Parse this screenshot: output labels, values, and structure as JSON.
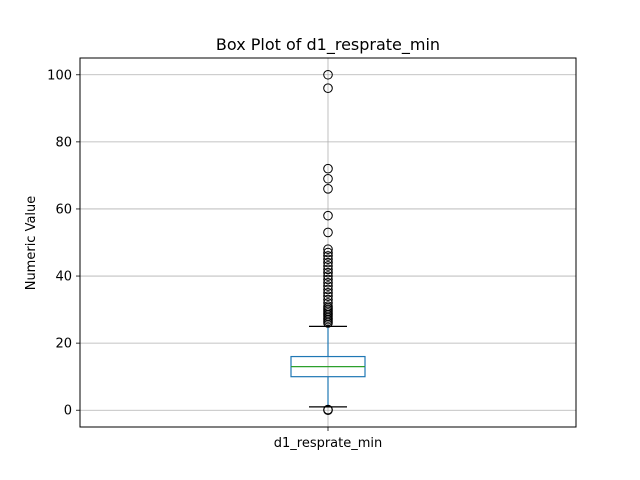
{
  "chart_data": {
    "type": "box",
    "title": "Box Plot of d1_resprate_min",
    "xlabel": "",
    "ylabel": "Numeric Value",
    "categories": [
      "d1_resprate_min"
    ],
    "ylim": [
      -5,
      105
    ],
    "yticks": [
      0,
      20,
      40,
      60,
      80,
      100
    ],
    "grid": true,
    "boxes": [
      {
        "name": "d1_resprate_min",
        "whisker_low": 1,
        "q1": 10,
        "median": 13,
        "q3": 16,
        "whisker_high": 25,
        "outliers_high": [
          26,
          26.5,
          27,
          27.5,
          28,
          28.5,
          29,
          29.5,
          30,
          30.5,
          31,
          32,
          33,
          34,
          35,
          36,
          37,
          38,
          39,
          40,
          41,
          42,
          43,
          44,
          45,
          46,
          47,
          48,
          53,
          58,
          66,
          69,
          72,
          96,
          100
        ],
        "outliers_low": [
          0,
          0.2
        ]
      }
    ],
    "colors": {
      "box": "#1f77b4",
      "median": "#2ca02c",
      "whisker": "#1f77b4",
      "cap": "#000000",
      "outlier": "#000000",
      "grid": "#b0b0b0"
    }
  }
}
